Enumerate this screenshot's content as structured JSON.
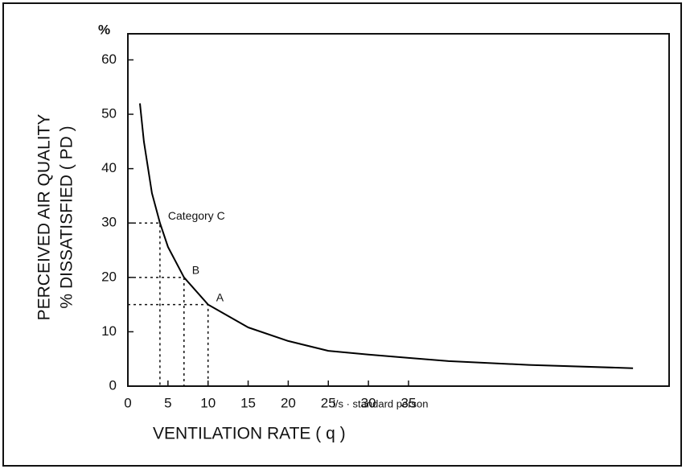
{
  "chart_data": {
    "type": "line",
    "ylabel": [
      "PERCEIVED AIR QUALITY",
      "% DISSATISFIED ( PD )"
    ],
    "yunit": "%",
    "xlabel": "VENTILATION RATE ( q )",
    "xunit": "l/s · standard person",
    "x": [
      1.5,
      2,
      3,
      4,
      5,
      7,
      10,
      15,
      20,
      25,
      30,
      35,
      40,
      50,
      63
    ],
    "series": [
      {
        "color": "#000000",
        "values": [
          52,
          45,
          35.5,
          30,
          25.6,
          20,
          15,
          10.8,
          8.3,
          6.5,
          5.8,
          5.2,
          4.6,
          3.9,
          3.3
        ]
      }
    ],
    "annotations": [
      {
        "text": "Category C",
        "x": 4,
        "y": 30
      },
      {
        "text": "B",
        "x": 7,
        "y": 20
      },
      {
        "text": "A",
        "x": 10,
        "y": 15
      }
    ],
    "xlim": [
      0,
      67.5
    ],
    "ylim": [
      0,
      64.8
    ],
    "xticks": [
      0,
      5,
      10,
      15,
      20,
      25,
      30,
      35
    ],
    "yticks": [
      0,
      10,
      20,
      30,
      40,
      50,
      60
    ]
  }
}
